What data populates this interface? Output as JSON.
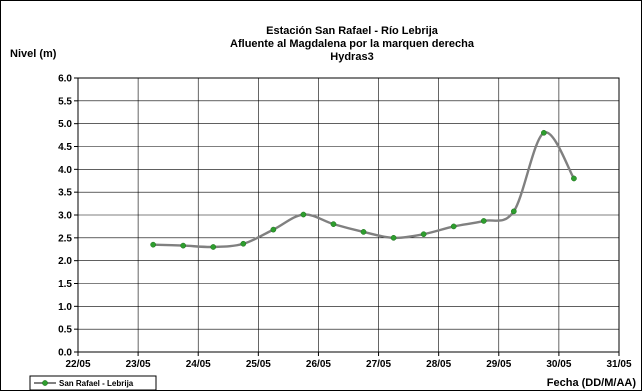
{
  "chart_data": {
    "type": "line",
    "title": [
      "Estación San Rafael - Río Lebrija",
      "Afluente al Magdalena por la marquen derecha",
      "Hydras3"
    ],
    "ylabel": "Nivel (m)",
    "xlabel": "Fecha (DD/M/AA)",
    "ylim": [
      0.0,
      6.0
    ],
    "yticks": [
      "0.0",
      "0.5",
      "1.0",
      "1.5",
      "2.0",
      "2.5",
      "3.0",
      "3.5",
      "4.0",
      "4.5",
      "5.0",
      "5.5",
      "6.0"
    ],
    "xlim": [
      "22/05",
      "31/05"
    ],
    "xticks": [
      "22/05",
      "23/05",
      "24/05",
      "25/05",
      "26/05",
      "27/05",
      "28/05",
      "29/05",
      "30/05",
      "31/05"
    ],
    "grid": true,
    "legend": "bottom-left",
    "series": [
      {
        "name": "San Rafael - Lebrija",
        "color": "#808080",
        "marker_color": "#2e9e2e",
        "x": [
          "23/05 06:00",
          "23/05 18:00",
          "24/05 06:00",
          "24/05 18:00",
          "25/05 06:00",
          "25/05 18:00",
          "26/05 06:00",
          "26/05 18:00",
          "27/05 06:00",
          "27/05 18:00",
          "28/05 06:00",
          "28/05 18:00",
          "29/05 06:00",
          "29/05 18:00",
          "30/05 06:00"
        ],
        "values": [
          2.35,
          2.33,
          2.3,
          2.37,
          2.68,
          3.01,
          2.8,
          2.63,
          2.5,
          2.58,
          2.75,
          2.87,
          3.08,
          4.8,
          3.8
        ]
      }
    ]
  }
}
